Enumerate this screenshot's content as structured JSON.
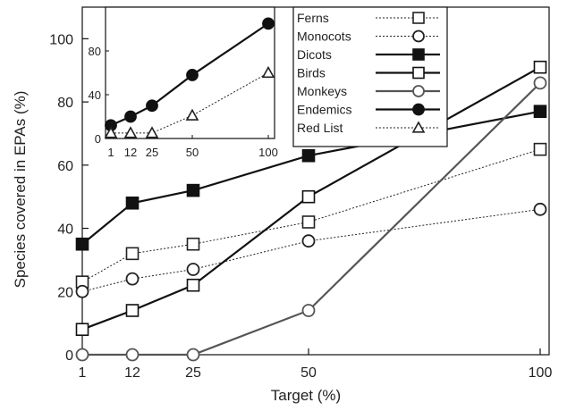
{
  "chart_data": [
    {
      "type": "line",
      "xlabel": "Target (%)",
      "ylabel": "Species covered in EPAs (%)",
      "x": [
        1,
        12,
        25,
        50,
        100
      ],
      "x_ticks": [
        1,
        12,
        25,
        50,
        100
      ],
      "y_ticks": [
        0,
        20,
        40,
        60,
        80,
        100
      ],
      "ylim": [
        0,
        110
      ],
      "grid": false,
      "series": [
        {
          "name": "Ferns",
          "values": [
            23,
            32,
            35,
            42,
            65
          ],
          "color": "#222222",
          "style": "dotted",
          "marker": "square-open"
        },
        {
          "name": "Monocots",
          "values": [
            20,
            24,
            27,
            36,
            46
          ],
          "color": "#222222",
          "style": "dotted",
          "marker": "circle-open"
        },
        {
          "name": "Dicots",
          "values": [
            35,
            48,
            52,
            63,
            77
          ],
          "color": "#111111",
          "style": "solid",
          "marker": "square-filled"
        },
        {
          "name": "Birds",
          "values": [
            8,
            14,
            22,
            50,
            91
          ],
          "color": "#111111",
          "style": "solid",
          "marker": "square-open"
        },
        {
          "name": "Monkeys",
          "values": [
            0,
            0,
            0,
            14,
            86
          ],
          "color": "#555555",
          "style": "solid",
          "marker": "circle-open"
        }
      ]
    },
    {
      "type": "line",
      "inset": true,
      "x": [
        1,
        12,
        25,
        50,
        100
      ],
      "x_ticks": [
        1,
        12,
        25,
        50,
        100
      ],
      "y_ticks": [
        0,
        40,
        80
      ],
      "ylim": [
        0,
        120
      ],
      "series": [
        {
          "name": "Endemics",
          "values": [
            12,
            20,
            30,
            58,
            105
          ],
          "color": "#111111",
          "style": "solid",
          "marker": "circle-filled"
        },
        {
          "name": "Red List",
          "values": [
            5,
            5,
            5,
            21,
            60
          ],
          "color": "#222222",
          "style": "dotted",
          "marker": "triangle-open"
        }
      ]
    }
  ],
  "legend": {
    "placement": "top-right",
    "entries": [
      "Ferns",
      "Monocots",
      "Dicots",
      "Birds",
      "Monkeys",
      "Endemics",
      "Red List"
    ]
  }
}
